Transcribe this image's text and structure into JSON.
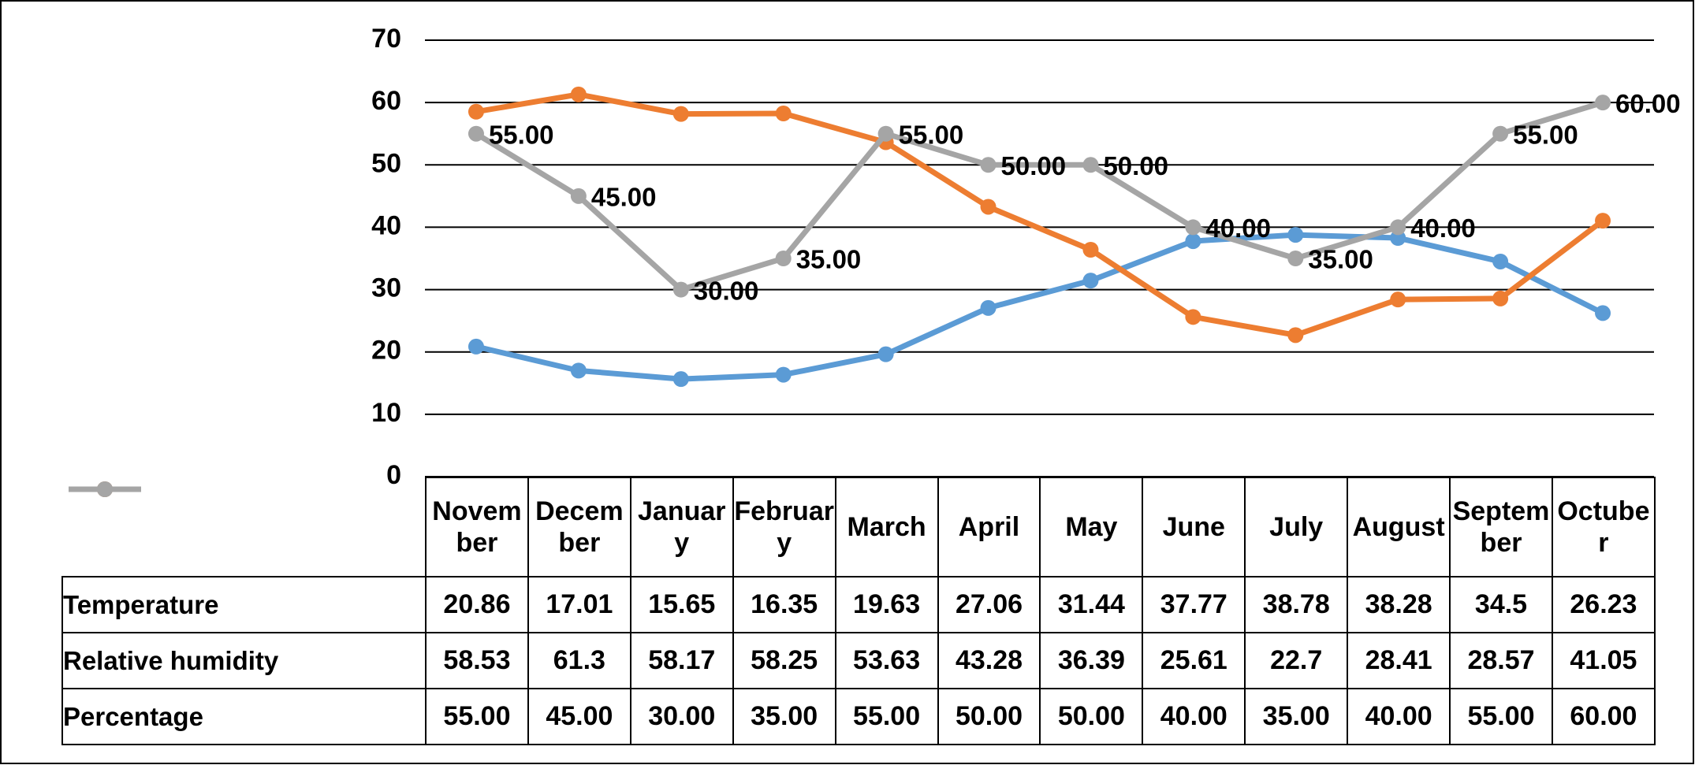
{
  "chart_data": {
    "type": "line",
    "categories": [
      "November",
      "December",
      "January",
      "February",
      "March",
      "April",
      "May",
      "June",
      "July",
      "August",
      "September",
      "Octuber"
    ],
    "series": [
      {
        "name": "Temperature",
        "color": "#5b9bd5",
        "values": [
          20.86,
          17.01,
          15.65,
          16.35,
          19.63,
          27.06,
          31.44,
          37.77,
          38.78,
          38.28,
          34.5,
          26.23
        ]
      },
      {
        "name": "Relative humidity",
        "color": "#ed7d31",
        "values": [
          58.53,
          61.3,
          58.17,
          58.25,
          53.63,
          43.28,
          36.39,
          25.61,
          22.7,
          28.41,
          28.57,
          41.05
        ]
      },
      {
        "name": "Percentage",
        "color": "#a5a5a5",
        "values": [
          55,
          45,
          30,
          35,
          55,
          50,
          50,
          40,
          35,
          40,
          55,
          60
        ],
        "value_labels": [
          "55.00",
          "45.00",
          "30.00",
          "35.00",
          "55.00",
          "50.00",
          "50.00",
          "40.00",
          "35.00",
          "40.00",
          "55.00",
          "60.00"
        ],
        "data_labels": true
      }
    ],
    "ylim": [
      0,
      70
    ],
    "yticks": [
      0,
      10,
      20,
      30,
      40,
      50,
      60,
      70
    ],
    "grid": true,
    "data_table": true
  }
}
